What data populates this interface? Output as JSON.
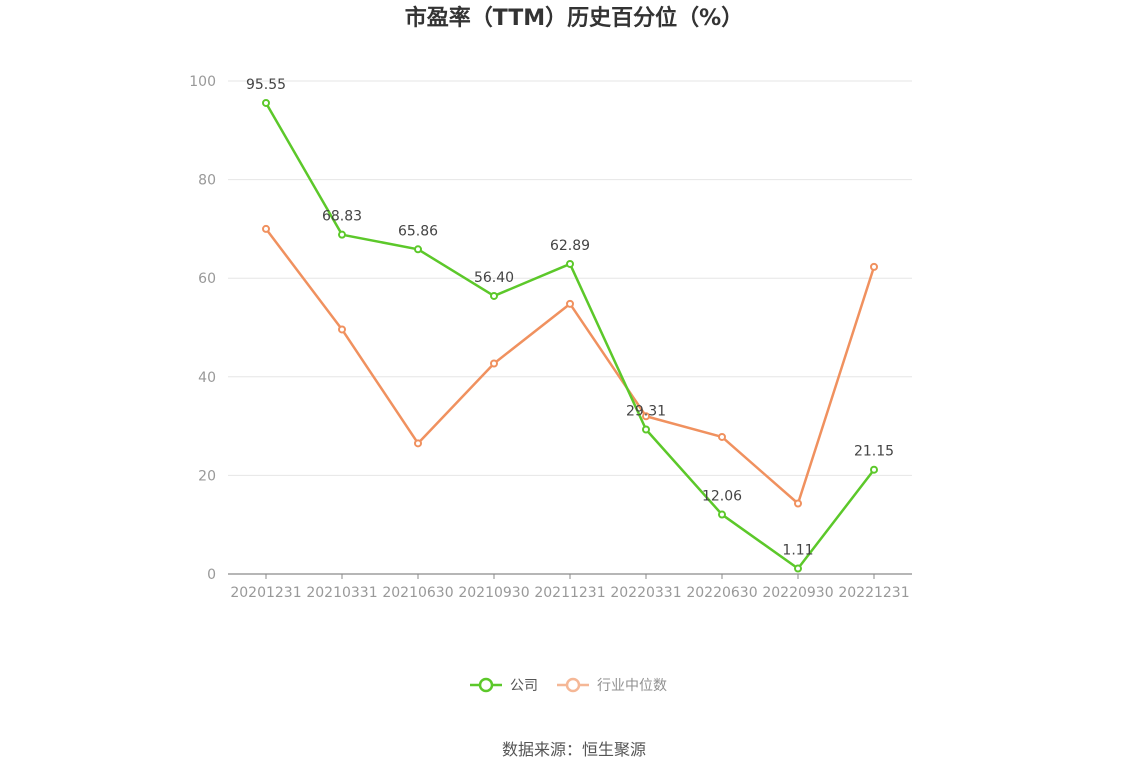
{
  "chart_data": {
    "type": "line",
    "title": "市盈率（TTM）历史百分位（%）",
    "categories": [
      "20201231",
      "20210331",
      "20210630",
      "20210930",
      "20211231",
      "20220331",
      "20220630",
      "20220930",
      "20221231"
    ],
    "ylim": [
      0,
      100
    ],
    "yticks": [
      0,
      20,
      40,
      60,
      80,
      100
    ],
    "grid": true,
    "legend_position": "bottom",
    "series": [
      {
        "name": "公司",
        "color": "#5cc82a",
        "values": [
          95.55,
          68.83,
          65.86,
          56.4,
          62.89,
          29.31,
          12.06,
          1.11,
          21.15
        ],
        "labels": [
          "95.55",
          "68.83",
          "65.86",
          "56.40",
          "62.89",
          "29.31",
          "12.06",
          "1.11",
          "21.15"
        ]
      },
      {
        "name": "行业中位数",
        "color": "#f0915f",
        "values": [
          70.0,
          49.6,
          26.5,
          42.7,
          54.8,
          32.0,
          27.8,
          14.3,
          62.3
        ]
      }
    ]
  },
  "source": "数据来源：恒生聚源"
}
